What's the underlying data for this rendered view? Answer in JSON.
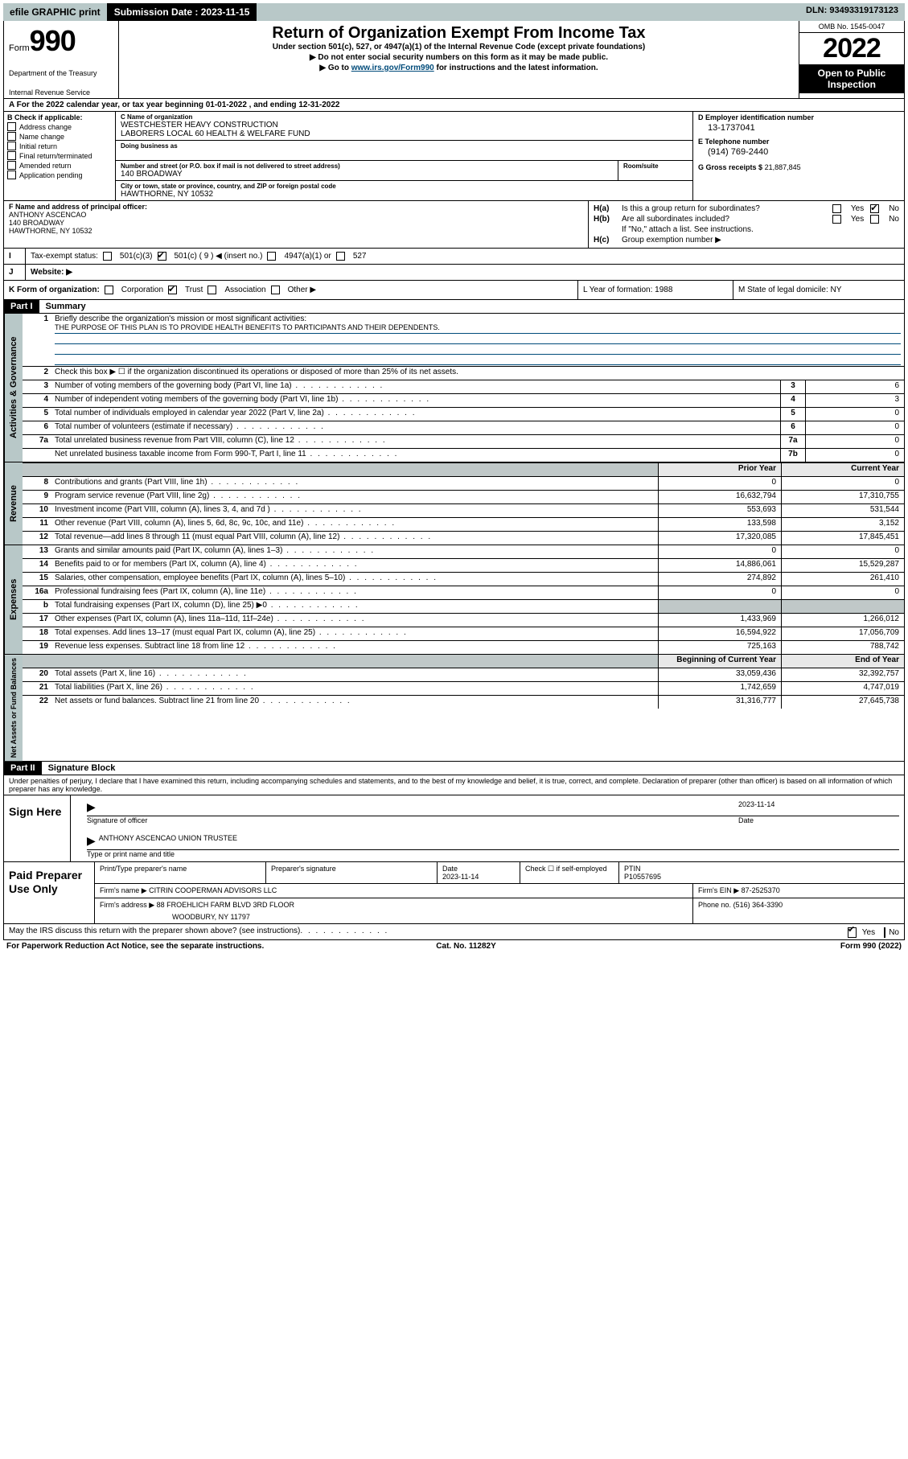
{
  "topbar": {
    "efile": "efile GRAPHIC print",
    "submission_label": "Submission Date :",
    "submission_date": "2023-11-15",
    "dln_label": "DLN:",
    "dln": "93493319173123"
  },
  "header": {
    "form_word": "Form",
    "form_num": "990",
    "dept": "Department of the Treasury",
    "irs": "Internal Revenue Service",
    "title": "Return of Organization Exempt From Income Tax",
    "sub": "Under section 501(c), 527, or 4947(a)(1) of the Internal Revenue Code (except private foundations)",
    "note1": "▶ Do not enter social security numbers on this form as it may be made public.",
    "note2_pre": "▶ Go to ",
    "note2_link": "www.irs.gov/Form990",
    "note2_post": " for instructions and the latest information.",
    "omb": "OMB No. 1545-0047",
    "year": "2022",
    "open": "Open to Public Inspection"
  },
  "rowA": "A  For the 2022 calendar year, or tax year beginning 01-01-2022     , and ending 12-31-2022",
  "boxB": {
    "hdr": "B Check if applicable:",
    "items": [
      "Address change",
      "Name change",
      "Initial return",
      "Final return/terminated",
      "Amended return",
      "Application pending"
    ]
  },
  "boxC": {
    "lbl_name": "C Name of organization",
    "name1": "WESTCHESTER HEAVY CONSTRUCTION",
    "name2": "LABORERS LOCAL 60 HEALTH & WELFARE FUND",
    "dba_lbl": "Doing business as",
    "addr_lbl": "Number and street (or P.O. box if mail is not delivered to street address)",
    "room_lbl": "Room/suite",
    "addr": "140 BROADWAY",
    "city_lbl": "City or town, state or province, country, and ZIP or foreign postal code",
    "city": "HAWTHORNE, NY   10532"
  },
  "boxD": {
    "lbl": "D Employer identification number",
    "val": "13-1737041",
    "tel_lbl": "E Telephone number",
    "tel": "(914) 769-2440",
    "gross_lbl": "G Gross receipts $",
    "gross": "21,887,845"
  },
  "boxF": {
    "lbl": "F Name and address of principal officer:",
    "name": "ANTHONY ASCENCAO",
    "addr1": "140 BROADWAY",
    "addr2": "HAWTHORNE, NY   10532"
  },
  "boxH": {
    "a": "Is this a group return for subordinates?",
    "b": "Are all subordinates included?",
    "note": "If \"No,\" attach a list. See instructions.",
    "c": "Group exemption number ▶",
    "yes": "Yes",
    "no": "No"
  },
  "rowI": {
    "lbl": "Tax-exempt status:",
    "o1": "501(c)(3)",
    "o2": "501(c) ( 9 ) ◀ (insert no.)",
    "o3": "4947(a)(1) or",
    "o4": "527"
  },
  "rowJ": {
    "lbl": "Website: ▶"
  },
  "rowK": {
    "lbl": "K Form of organization:",
    "o1": "Corporation",
    "o2": "Trust",
    "o3": "Association",
    "o4": "Other ▶",
    "L": "L Year of formation: 1988",
    "M": "M State of legal domicile: NY"
  },
  "part1": {
    "hdr": "Part I",
    "title": "Summary",
    "q1": "Briefly describe the organization's mission or most significant activities:",
    "mission": "THE PURPOSE OF THIS PLAN IS TO PROVIDE HEALTH BENEFITS TO PARTICIPANTS AND THEIR DEPENDENTS.",
    "q2": "Check this box ▶ ☐  if the organization discontinued its operations or disposed of more than 25% of its net assets."
  },
  "tabs": {
    "gov": "Activities & Governance",
    "rev": "Revenue",
    "exp": "Expenses",
    "net": "Net Assets or Fund Balances"
  },
  "gov_rows": [
    {
      "n": "3",
      "d": "Number of voting members of the governing body (Part VI, line 1a)",
      "box": "3",
      "v": "6"
    },
    {
      "n": "4",
      "d": "Number of independent voting members of the governing body (Part VI, line 1b)",
      "box": "4",
      "v": "3"
    },
    {
      "n": "5",
      "d": "Total number of individuals employed in calendar year 2022 (Part V, line 2a)",
      "box": "5",
      "v": "0"
    },
    {
      "n": "6",
      "d": "Total number of volunteers (estimate if necessary)",
      "box": "6",
      "v": "0"
    },
    {
      "n": "7a",
      "d": "Total unrelated business revenue from Part VIII, column (C), line 12",
      "box": "7a",
      "v": "0"
    },
    {
      "n": "",
      "d": "Net unrelated business taxable income from Form 990-T, Part I, line 11",
      "box": "7b",
      "v": "0"
    }
  ],
  "col_hdr": {
    "prior": "Prior Year",
    "current": "Current Year",
    "boy": "Beginning of Current Year",
    "eoy": "End of Year"
  },
  "rev_rows": [
    {
      "n": "8",
      "d": "Contributions and grants (Part VIII, line 1h)",
      "p": "0",
      "c": "0"
    },
    {
      "n": "9",
      "d": "Program service revenue (Part VIII, line 2g)",
      "p": "16,632,794",
      "c": "17,310,755"
    },
    {
      "n": "10",
      "d": "Investment income (Part VIII, column (A), lines 3, 4, and 7d )",
      "p": "553,693",
      "c": "531,544"
    },
    {
      "n": "11",
      "d": "Other revenue (Part VIII, column (A), lines 5, 6d, 8c, 9c, 10c, and 11e)",
      "p": "133,598",
      "c": "3,152"
    },
    {
      "n": "12",
      "d": "Total revenue—add lines 8 through 11 (must equal Part VIII, column (A), line 12)",
      "p": "17,320,085",
      "c": "17,845,451"
    }
  ],
  "exp_rows": [
    {
      "n": "13",
      "d": "Grants and similar amounts paid (Part IX, column (A), lines 1–3)",
      "p": "0",
      "c": "0"
    },
    {
      "n": "14",
      "d": "Benefits paid to or for members (Part IX, column (A), line 4)",
      "p": "14,886,061",
      "c": "15,529,287"
    },
    {
      "n": "15",
      "d": "Salaries, other compensation, employee benefits (Part IX, column (A), lines 5–10)",
      "p": "274,892",
      "c": "261,410"
    },
    {
      "n": "16a",
      "d": "Professional fundraising fees (Part IX, column (A), line 11e)",
      "p": "0",
      "c": "0"
    },
    {
      "n": "b",
      "d": "Total fundraising expenses (Part IX, column (D), line 25) ▶0",
      "p": "",
      "c": "",
      "shaded": true
    },
    {
      "n": "17",
      "d": "Other expenses (Part IX, column (A), lines 11a–11d, 11f–24e)",
      "p": "1,433,969",
      "c": "1,266,012"
    },
    {
      "n": "18",
      "d": "Total expenses. Add lines 13–17 (must equal Part IX, column (A), line 25)",
      "p": "16,594,922",
      "c": "17,056,709"
    },
    {
      "n": "19",
      "d": "Revenue less expenses. Subtract line 18 from line 12",
      "p": "725,163",
      "c": "788,742"
    }
  ],
  "net_rows": [
    {
      "n": "20",
      "d": "Total assets (Part X, line 16)",
      "p": "33,059,436",
      "c": "32,392,757"
    },
    {
      "n": "21",
      "d": "Total liabilities (Part X, line 26)",
      "p": "1,742,659",
      "c": "4,747,019"
    },
    {
      "n": "22",
      "d": "Net assets or fund balances. Subtract line 21 from line 20",
      "p": "31,316,777",
      "c": "27,645,738"
    }
  ],
  "part2": {
    "hdr": "Part II",
    "title": "Signature Block",
    "decl": "Under penalties of perjury, I declare that I have examined this return, including accompanying schedules and statements, and to the best of my knowledge and belief, it is true, correct, and complete. Declaration of preparer (other than officer) is based on all information of which preparer has any knowledge."
  },
  "sign": {
    "here": "Sign Here",
    "sig_lbl": "Signature of officer",
    "date_lbl": "Date",
    "date": "2023-11-14",
    "name": "ANTHONY ASCENCAO  UNION TRUSTEE",
    "name_lbl": "Type or print name and title"
  },
  "prep": {
    "title": "Paid Preparer Use Only",
    "h1": "Print/Type preparer's name",
    "h2": "Preparer's signature",
    "h3": "Date",
    "h4": "Check ☐ if self-employed",
    "h5": "PTIN",
    "date": "2023-11-14",
    "ptin": "P10557695",
    "firm_lbl": "Firm's name     ▶",
    "firm": "CITRIN COOPERMAN ADVISORS LLC",
    "ein_lbl": "Firm's EIN ▶",
    "ein": "87-2525370",
    "addr_lbl": "Firm's address ▶",
    "addr1": "88 FROEHLICH FARM BLVD 3RD FLOOR",
    "addr2": "WOODBURY, NY   11797",
    "phone_lbl": "Phone no.",
    "phone": "(516) 364-3390"
  },
  "discuss": {
    "q": "May the IRS discuss this return with the preparer shown above? (see instructions)",
    "yes": "Yes",
    "no": "No"
  },
  "footer": {
    "left": "For Paperwork Reduction Act Notice, see the separate instructions.",
    "mid": "Cat. No. 11282Y",
    "right": "Form 990 (2022)"
  }
}
